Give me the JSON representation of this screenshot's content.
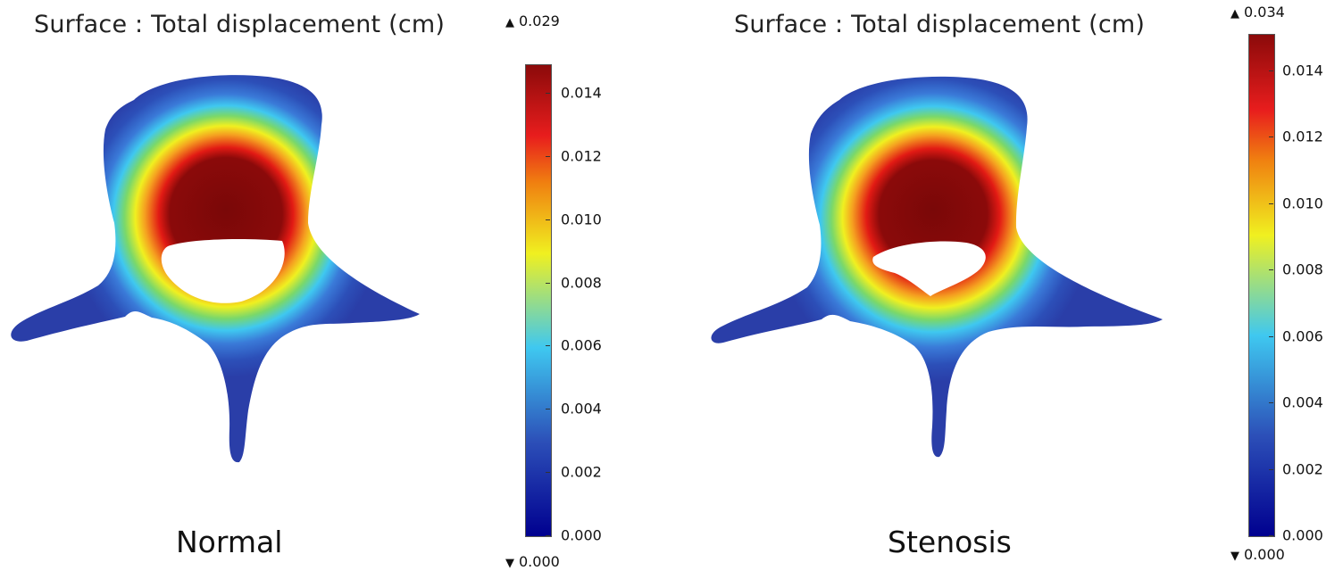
{
  "panels": [
    {
      "id": "normal",
      "title": "Surface : Total displacement (cm)",
      "caption": "Normal",
      "max_label": "0.029",
      "min_label": "0.000",
      "ticks": [
        "0.014",
        "0.012",
        "0.010",
        "0.008",
        "0.006",
        "0.004",
        "0.002",
        "0.000"
      ]
    },
    {
      "id": "stenosis",
      "title": "Surface : Total displacement (cm)",
      "caption": "Stenosis",
      "max_label": "0.034",
      "min_label": "0.000",
      "ticks": [
        "0.014",
        "0.012",
        "0.010",
        "0.008",
        "0.006",
        "0.004",
        "0.002",
        "0.000"
      ]
    }
  ],
  "glyphs": {
    "up": "▲",
    "down": "▼"
  },
  "colors": {
    "jet_dark_blue": "#00008f",
    "jet_blue": "#2c4fb8",
    "jet_cyan": "#3fc8f0",
    "jet_yellow": "#f0f020",
    "jet_red": "#e81d1d",
    "jet_dark_red": "#8b0a0a"
  }
}
